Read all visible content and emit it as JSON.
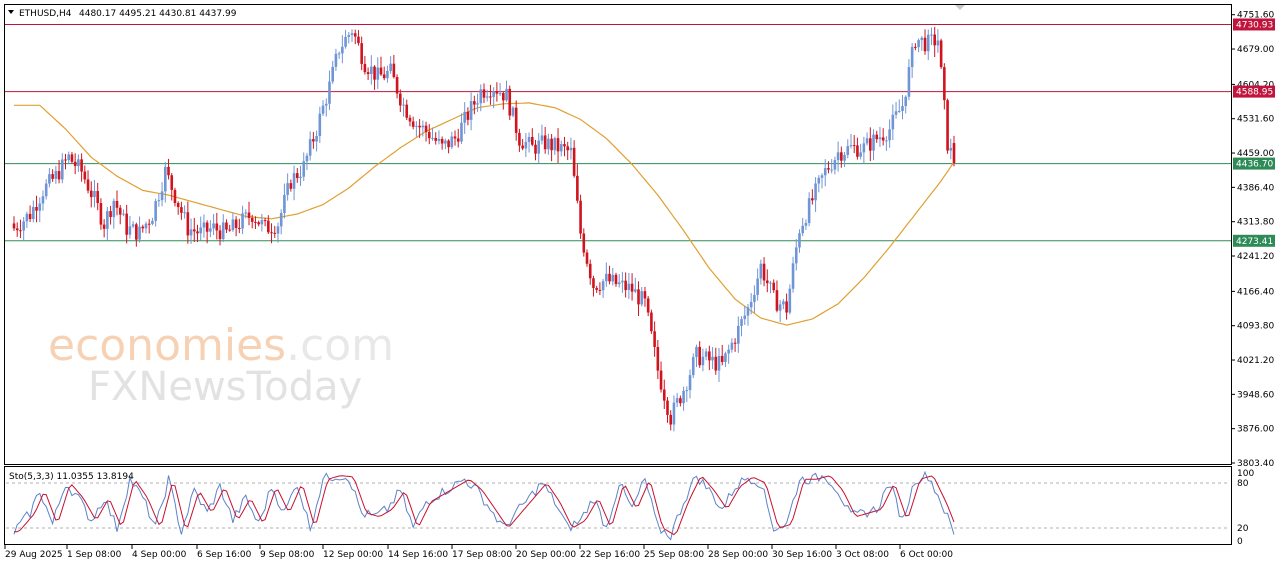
{
  "header": {
    "symbol": "ETHUSD,H4",
    "ohlc": "4480.17 4495.21 4430.81 4437.99"
  },
  "watermark": {
    "line1_colored": "economies",
    "line1_plain": ".com",
    "line2": "FXNewsToday"
  },
  "chart_data": [
    {
      "type": "candlestick",
      "symbol": "ETHUSD",
      "timeframe": "H4",
      "ylim": [
        3803.4,
        4770.0
      ],
      "y_ticks": [
        "4751.60",
        "4679.00",
        "4604.20",
        "4531.60",
        "4459.00",
        "4386.40",
        "4313.80",
        "4241.20",
        "4166.40",
        "4093.80",
        "4021.20",
        "3948.60",
        "3876.00",
        "3803.40"
      ],
      "x_ticks": [
        "29 Aug 2025",
        "1 Sep 08:00",
        "4 Sep 00:00",
        "6 Sep 16:00",
        "9 Sep 08:00",
        "12 Sep 00:00",
        "14 Sep 16:00",
        "17 Sep 08:00",
        "20 Sep 00:00",
        "22 Sep 16:00",
        "25 Sep 08:00",
        "28 Sep 00:00",
        "30 Sep 16:00",
        "3 Oct 08:00",
        "6 Oct 00:00"
      ],
      "levels": [
        {
          "value": 4730.93,
          "label": "4730.93",
          "color": "#c0143c"
        },
        {
          "value": 4588.95,
          "label": "4588.95",
          "color": "#c0143c"
        },
        {
          "value": 4436.7,
          "label": "4436.70",
          "color": "#2e8b57"
        },
        {
          "value": 4273.41,
          "label": "4273.41",
          "color": "#2e8b57"
        }
      ],
      "up_color": "#6f95d6",
      "down_color": "#d0141e",
      "ma_color": "#e0a030",
      "close_path": [
        [
          0,
          4300
        ],
        [
          5,
          4330
        ],
        [
          9,
          4380
        ],
        [
          13,
          4410
        ],
        [
          17,
          4450
        ],
        [
          21,
          4420
        ],
        [
          25,
          4360
        ],
        [
          28,
          4310
        ],
        [
          31,
          4360
        ],
        [
          35,
          4300
        ],
        [
          39,
          4290
        ],
        [
          43,
          4330
        ],
        [
          47,
          4420
        ],
        [
          50,
          4370
        ],
        [
          54,
          4300
        ],
        [
          58,
          4290
        ],
        [
          62,
          4300
        ],
        [
          66,
          4290
        ],
        [
          70,
          4310
        ],
        [
          74,
          4330
        ],
        [
          78,
          4300
        ],
        [
          82,
          4310
        ],
        [
          86,
          4400
        ],
        [
          90,
          4430
        ],
        [
          94,
          4510
        ],
        [
          98,
          4600
        ],
        [
          101,
          4680
        ],
        [
          105,
          4720
        ],
        [
          109,
          4650
        ],
        [
          113,
          4620
        ],
        [
          117,
          4630
        ],
        [
          121,
          4560
        ],
        [
          125,
          4520
        ],
        [
          129,
          4500
        ],
        [
          133,
          4470
        ],
        [
          137,
          4490
        ],
        [
          141,
          4540
        ],
        [
          145,
          4590
        ],
        [
          149,
          4600
        ],
        [
          153,
          4580
        ],
        [
          157,
          4490
        ],
        [
          161,
          4470
        ],
        [
          165,
          4480
        ],
        [
          169,
          4470
        ],
        [
          173,
          4460
        ],
        [
          176,
          4290
        ],
        [
          180,
          4180
        ],
        [
          184,
          4190
        ],
        [
          188,
          4180
        ],
        [
          192,
          4170
        ],
        [
          196,
          4140
        ],
        [
          200,
          4000
        ],
        [
          204,
          3900
        ],
        [
          208,
          3960
        ],
        [
          212,
          4030
        ],
        [
          216,
          4020
        ],
        [
          220,
          4010
        ],
        [
          224,
          4070
        ],
        [
          228,
          4130
        ],
        [
          232,
          4220
        ],
        [
          236,
          4150
        ],
        [
          240,
          4130
        ],
        [
          244,
          4300
        ],
        [
          248,
          4360
        ],
        [
          252,
          4420
        ],
        [
          256,
          4460
        ],
        [
          260,
          4470
        ],
        [
          264,
          4470
        ],
        [
          268,
          4490
        ],
        [
          272,
          4510
        ],
        [
          276,
          4560
        ],
        [
          280,
          4700
        ],
        [
          284,
          4690
        ],
        [
          287,
          4700
        ],
        [
          290,
          4480
        ],
        [
          292,
          4437.99
        ]
      ],
      "ma_path": [
        [
          0,
          4560
        ],
        [
          8,
          4560
        ],
        [
          16,
          4510
        ],
        [
          24,
          4450
        ],
        [
          32,
          4410
        ],
        [
          40,
          4380
        ],
        [
          48,
          4370
        ],
        [
          56,
          4355
        ],
        [
          64,
          4340
        ],
        [
          72,
          4325
        ],
        [
          80,
          4320
        ],
        [
          88,
          4330
        ],
        [
          96,
          4350
        ],
        [
          104,
          4385
        ],
        [
          112,
          4430
        ],
        [
          120,
          4470
        ],
        [
          128,
          4505
        ],
        [
          136,
          4530
        ],
        [
          144,
          4555
        ],
        [
          152,
          4563
        ],
        [
          160,
          4565
        ],
        [
          168,
          4555
        ],
        [
          176,
          4530
        ],
        [
          184,
          4490
        ],
        [
          192,
          4435
        ],
        [
          200,
          4370
        ],
        [
          208,
          4295
        ],
        [
          216,
          4215
        ],
        [
          224,
          4150
        ],
        [
          232,
          4110
        ],
        [
          240,
          4095
        ],
        [
          248,
          4108
        ],
        [
          256,
          4140
        ],
        [
          264,
          4195
        ],
        [
          272,
          4260
        ],
        [
          280,
          4330
        ],
        [
          288,
          4400
        ],
        [
          292,
          4440
        ]
      ],
      "n_bars": 293
    },
    {
      "type": "line",
      "title": "Sto(5,3,3) 11.0355 13.8194",
      "ylim": [
        0,
        100
      ],
      "y_ticks": [
        "100",
        "80",
        "20",
        "0"
      ],
      "levels": [
        80,
        20
      ],
      "series": [
        {
          "name": "%K",
          "color": "#5e82c8"
        },
        {
          "name": "%D",
          "color": "#c8102e"
        }
      ],
      "zone_path": [
        [
          0,
          15
        ],
        [
          5,
          40
        ],
        [
          8,
          70
        ],
        [
          12,
          25
        ],
        [
          16,
          80
        ],
        [
          20,
          60
        ],
        [
          24,
          30
        ],
        [
          28,
          60
        ],
        [
          32,
          20
        ],
        [
          36,
          85
        ],
        [
          40,
          60
        ],
        [
          44,
          20
        ],
        [
          48,
          85
        ],
        [
          52,
          15
        ],
        [
          56,
          70
        ],
        [
          60,
          40
        ],
        [
          64,
          75
        ],
        [
          68,
          30
        ],
        [
          72,
          60
        ],
        [
          76,
          25
        ],
        [
          80,
          75
        ],
        [
          84,
          40
        ],
        [
          88,
          80
        ],
        [
          92,
          20
        ],
        [
          96,
          85
        ],
        [
          100,
          90
        ],
        [
          104,
          88
        ],
        [
          108,
          40
        ],
        [
          112,
          35
        ],
        [
          116,
          45
        ],
        [
          120,
          70
        ],
        [
          124,
          20
        ],
        [
          128,
          55
        ],
        [
          132,
          65
        ],
        [
          136,
          75
        ],
        [
          140,
          85
        ],
        [
          144,
          70
        ],
        [
          148,
          45
        ],
        [
          152,
          20
        ],
        [
          156,
          40
        ],
        [
          160,
          60
        ],
        [
          164,
          80
        ],
        [
          168,
          55
        ],
        [
          172,
          20
        ],
        [
          176,
          30
        ],
        [
          180,
          60
        ],
        [
          184,
          20
        ],
        [
          188,
          80
        ],
        [
          192,
          45
        ],
        [
          196,
          85
        ],
        [
          200,
          20
        ],
        [
          204,
          10
        ],
        [
          208,
          55
        ],
        [
          212,
          90
        ],
        [
          216,
          70
        ],
        [
          220,
          45
        ],
        [
          224,
          75
        ],
        [
          228,
          88
        ],
        [
          232,
          80
        ],
        [
          236,
          20
        ],
        [
          240,
          25
        ],
        [
          244,
          85
        ],
        [
          248,
          85
        ],
        [
          252,
          90
        ],
        [
          256,
          70
        ],
        [
          260,
          35
        ],
        [
          264,
          40
        ],
        [
          268,
          45
        ],
        [
          272,
          80
        ],
        [
          276,
          30
        ],
        [
          280,
          85
        ],
        [
          284,
          90
        ],
        [
          288,
          55
        ],
        [
          292,
          12
        ]
      ]
    }
  ]
}
